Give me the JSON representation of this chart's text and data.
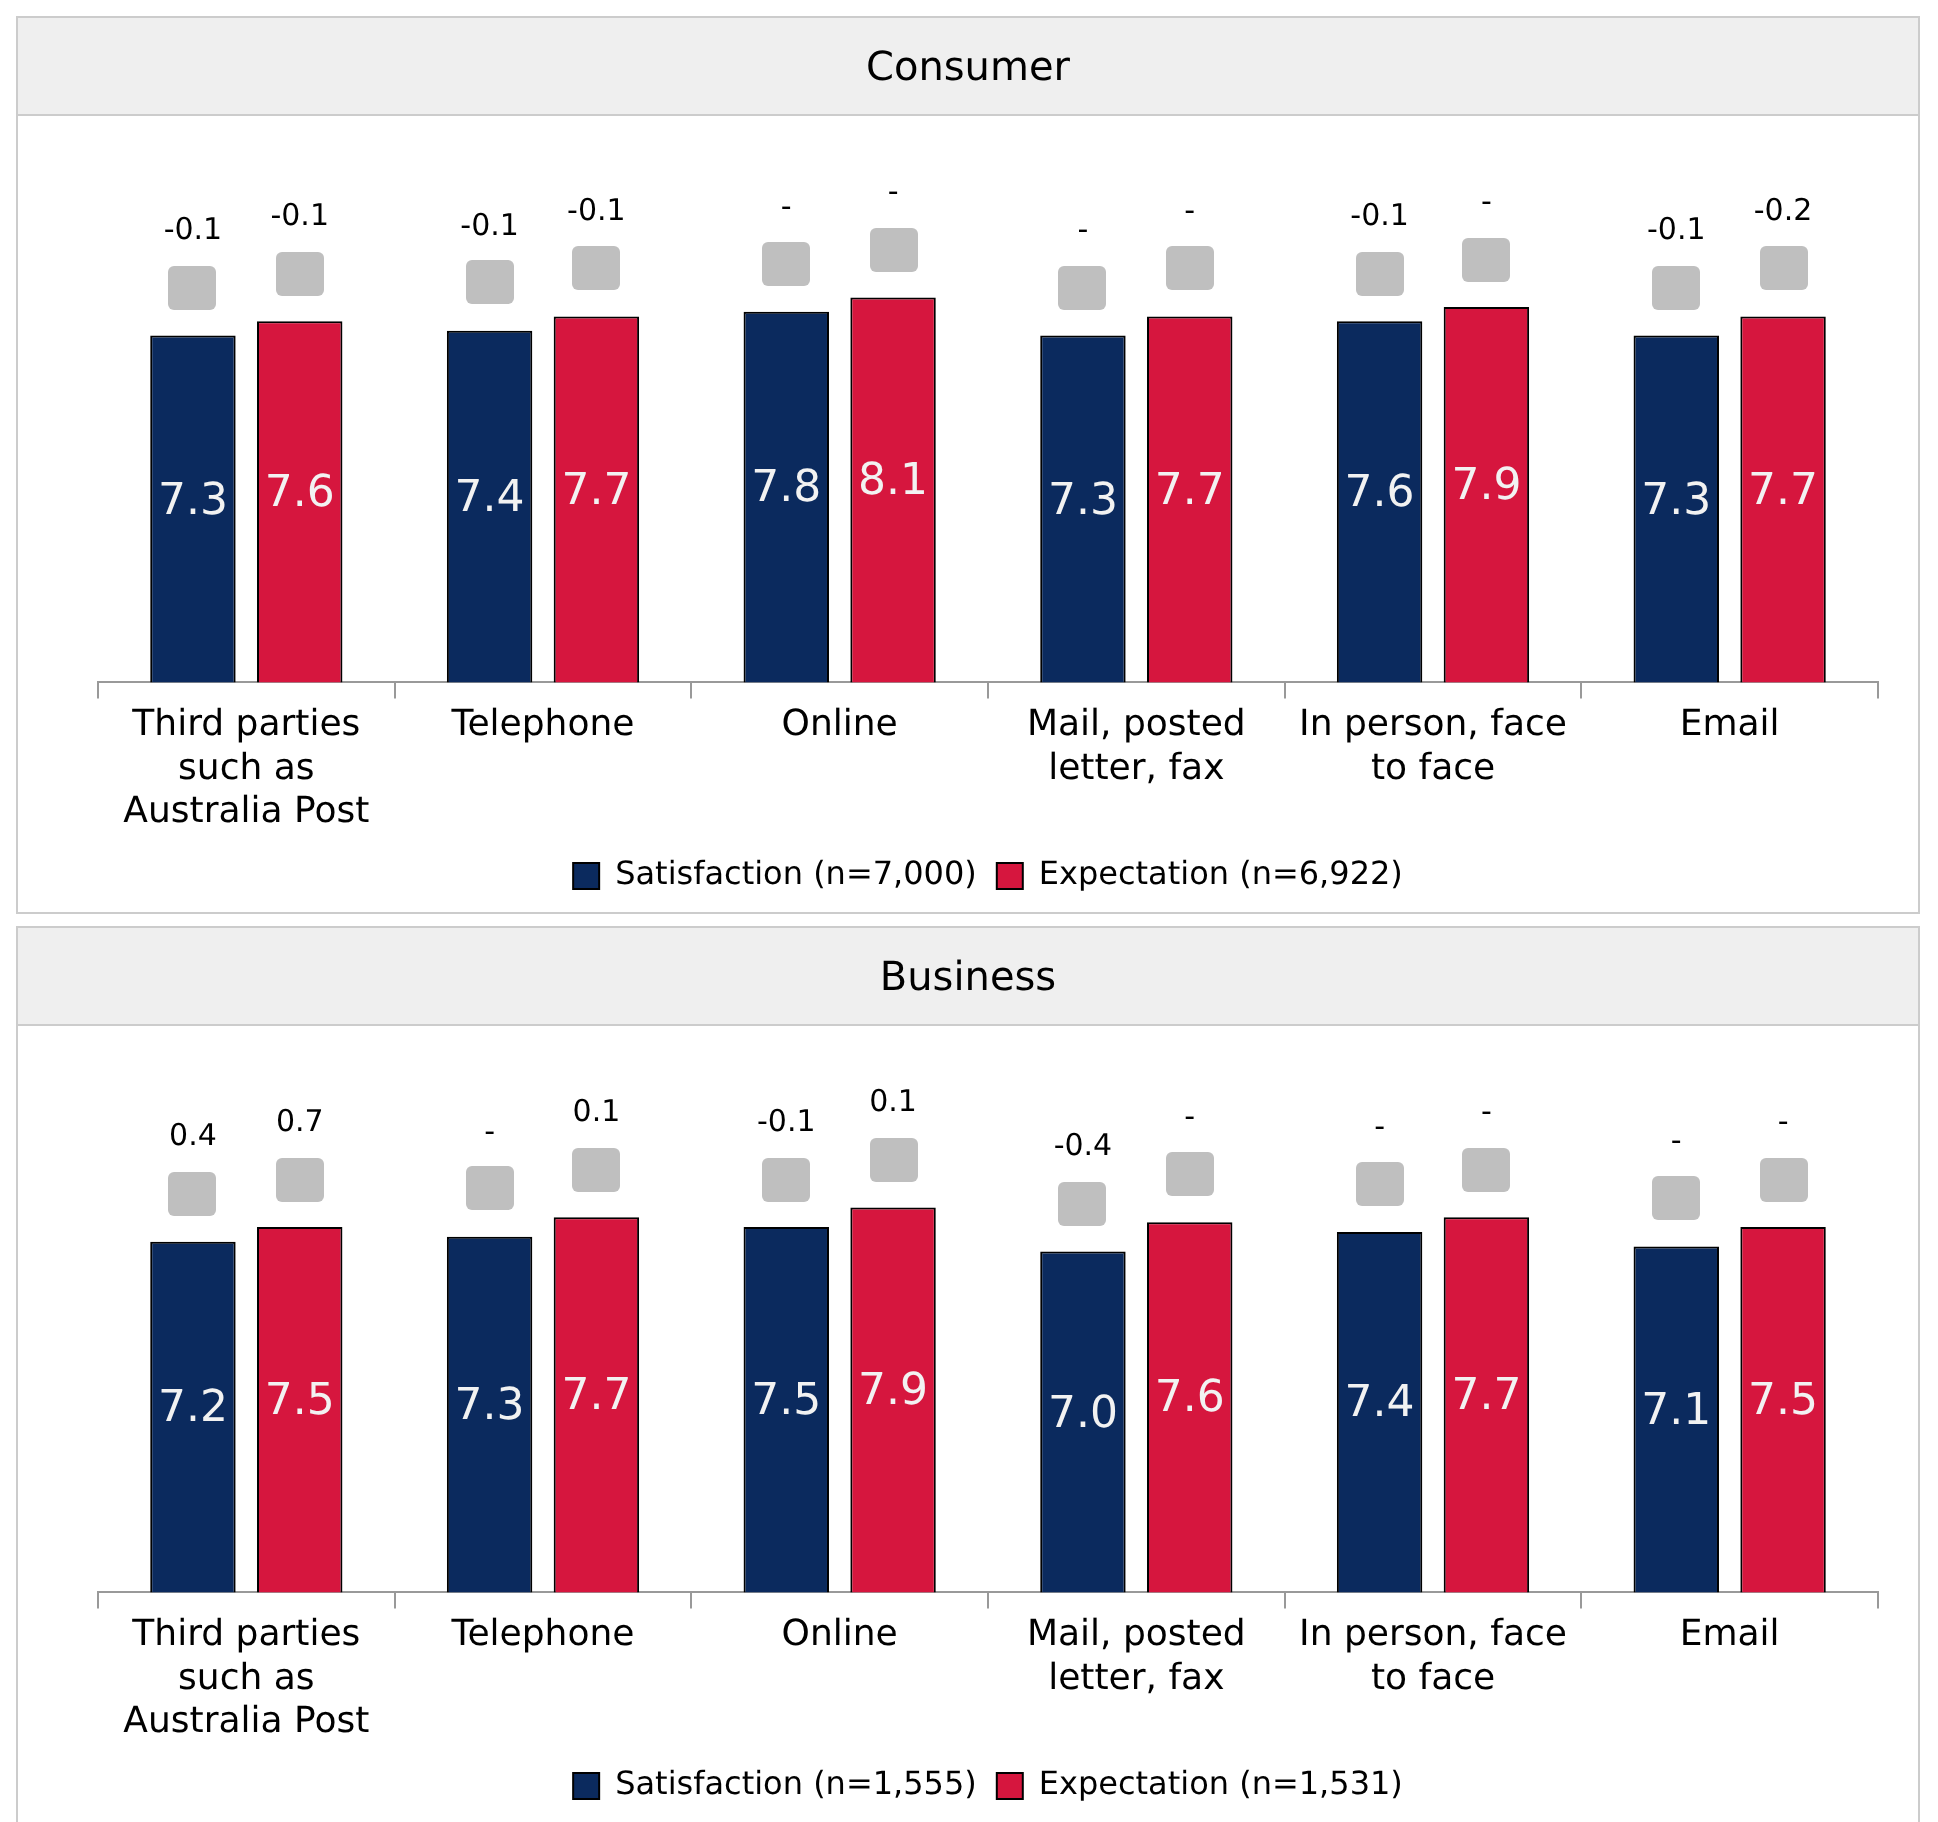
{
  "chart_data": [
    {
      "type": "bar",
      "title": "Consumer",
      "categories": [
        "Third parties such as Australia Post",
        "Telephone",
        "Online",
        "Mail, posted letter, fax",
        "In person, face to face",
        "Email"
      ],
      "series": [
        {
          "name": "Satisfaction (n=7,000)",
          "color": "#0b2a5e",
          "values": [
            7.3,
            7.4,
            7.8,
            7.3,
            7.6,
            7.3
          ],
          "value_labels": [
            "7.3",
            "7.4",
            "7.8",
            "7.3",
            "7.6",
            "7.3"
          ]
        },
        {
          "name": "Expectation (n=6,922)",
          "color": "#d6163e",
          "values": [
            7.6,
            7.7,
            8.1,
            7.7,
            7.9,
            7.7
          ],
          "value_labels": [
            "7.6",
            "7.7",
            "8.1",
            "7.7",
            "7.9",
            "7.7"
          ]
        }
      ],
      "legend": "bottom",
      "annotations": [
        "-0.1",
        "-0.1",
        "-0.1",
        "-0.1",
        "-",
        "-",
        "-",
        "-",
        "-0.1",
        "-",
        "-0.1",
        "-0.2"
      ]
    },
    {
      "type": "bar",
      "title": "Business",
      "categories": [
        "Third parties such as Australia Post",
        "Telephone",
        "Online",
        "Mail, posted letter, fax",
        "In person, face to face",
        "Email"
      ],
      "series": [
        {
          "name": "Satisfaction (n=1,555)",
          "color": "#0b2a5e",
          "values": [
            7.2,
            7.3,
            7.5,
            7.0,
            7.4,
            7.1
          ],
          "value_labels": [
            "7.2",
            "7.3",
            "7.5",
            "7.0",
            "7.4",
            "7.1"
          ]
        },
        {
          "name": "Expectation (n=1,531)",
          "color": "#d6163e",
          "values": [
            7.5,
            7.7,
            7.9,
            7.6,
            7.7,
            7.5
          ],
          "value_labels": [
            "7.5",
            "7.7",
            "7.9",
            "7.6",
            "7.7",
            "7.5"
          ]
        }
      ],
      "legend": "bottom",
      "annotations": [
        "0.4",
        "0.7",
        "-",
        "0.1",
        "-0.1",
        "0.1",
        "-0.4",
        "-",
        "-",
        "-",
        "-",
        "-"
      ]
    }
  ]
}
